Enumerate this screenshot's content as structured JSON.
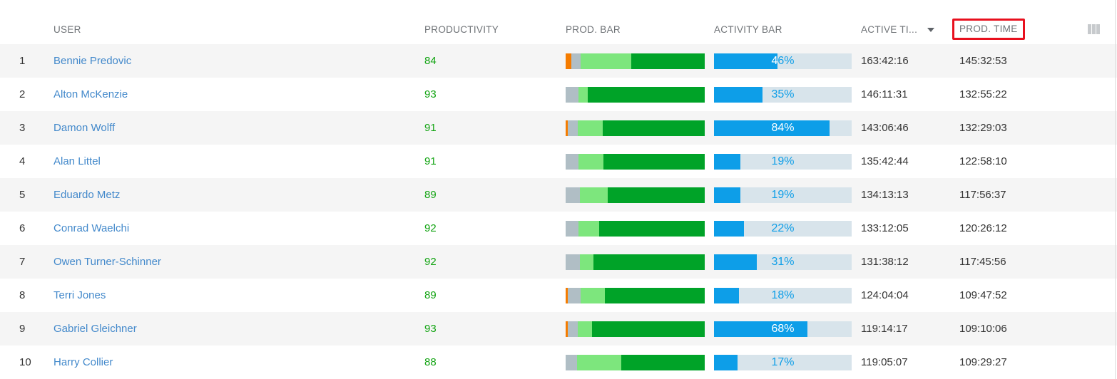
{
  "table": {
    "columns": {
      "user": "USER",
      "productivity": "PRODUCTIVITY",
      "prod_bar": "PROD. BAR",
      "activity_bar": "ACTIVITY BAR",
      "active_time": "ACTIVE TI...",
      "prod_time": "PROD. TIME"
    },
    "sort": {
      "column": "active_time",
      "direction": "desc"
    },
    "annotation": {
      "type": "red-highlight-box",
      "around_column": "prod_time",
      "color": "#e8101e"
    }
  },
  "colors": {
    "link_blue": "#4389cb",
    "productivity_green": "#12a412",
    "activity_fill_blue": "#0d9ee8",
    "activity_track": "#d8e4eb",
    "zebra_gray": "#f5f5f5",
    "bar_orange": "#f57c00",
    "bar_gray": "#b0bec5",
    "bar_light_green": "#7de67d",
    "bar_dark_green": "#00a328"
  },
  "bar_colors": {
    "orange": "#f57c00",
    "gray": "#b0bec5",
    "light_green": "#7de67d",
    "dark_green": "#00a328"
  },
  "rows": [
    {
      "rank": "1",
      "user": "Bennie Predovic",
      "productivity": "84",
      "prod_bar": [
        {
          "color": "orange",
          "pct": 4
        },
        {
          "color": "gray",
          "pct": 7
        },
        {
          "color": "light_green",
          "pct": 36
        },
        {
          "color": "dark_green",
          "pct": 53
        }
      ],
      "activity_pct": 46,
      "activity_label": "46%",
      "active_time": "163:42:16",
      "prod_time": "145:32:53"
    },
    {
      "rank": "2",
      "user": "Alton McKenzie",
      "productivity": "93",
      "prod_bar": [
        {
          "color": "gray",
          "pct": 9
        },
        {
          "color": "light_green",
          "pct": 7
        },
        {
          "color": "dark_green",
          "pct": 84
        }
      ],
      "activity_pct": 35,
      "activity_label": "35%",
      "active_time": "146:11:31",
      "prod_time": "132:55:22"
    },
    {
      "rank": "3",
      "user": "Damon Wolff",
      "productivity": "91",
      "prod_bar": [
        {
          "color": "orange",
          "pct": 1.5
        },
        {
          "color": "gray",
          "pct": 7
        },
        {
          "color": "light_green",
          "pct": 18
        },
        {
          "color": "dark_green",
          "pct": 73.5
        }
      ],
      "activity_pct": 84,
      "activity_label": "84%",
      "active_time": "143:06:46",
      "prod_time": "132:29:03"
    },
    {
      "rank": "4",
      "user": "Alan Littel",
      "productivity": "91",
      "prod_bar": [
        {
          "color": "gray",
          "pct": 9
        },
        {
          "color": "light_green",
          "pct": 18
        },
        {
          "color": "dark_green",
          "pct": 73
        }
      ],
      "activity_pct": 19,
      "activity_label": "19%",
      "active_time": "135:42:44",
      "prod_time": "122:58:10"
    },
    {
      "rank": "5",
      "user": "Eduardo Metz",
      "productivity": "89",
      "prod_bar": [
        {
          "color": "gray",
          "pct": 10
        },
        {
          "color": "light_green",
          "pct": 20
        },
        {
          "color": "dark_green",
          "pct": 70
        }
      ],
      "activity_pct": 19,
      "activity_label": "19%",
      "active_time": "134:13:13",
      "prod_time": "117:56:37"
    },
    {
      "rank": "6",
      "user": "Conrad Waelchi",
      "productivity": "92",
      "prod_bar": [
        {
          "color": "gray",
          "pct": 9
        },
        {
          "color": "light_green",
          "pct": 15
        },
        {
          "color": "dark_green",
          "pct": 76
        }
      ],
      "activity_pct": 22,
      "activity_label": "22%",
      "active_time": "133:12:05",
      "prod_time": "120:26:12"
    },
    {
      "rank": "7",
      "user": "Owen Turner-Schinner",
      "productivity": "92",
      "prod_bar": [
        {
          "color": "gray",
          "pct": 10
        },
        {
          "color": "light_green",
          "pct": 10
        },
        {
          "color": "dark_green",
          "pct": 80
        }
      ],
      "activity_pct": 31,
      "activity_label": "31%",
      "active_time": "131:38:12",
      "prod_time": "117:45:56"
    },
    {
      "rank": "8",
      "user": "Terri Jones",
      "productivity": "89",
      "prod_bar": [
        {
          "color": "orange",
          "pct": 1.5
        },
        {
          "color": "gray",
          "pct": 9.5
        },
        {
          "color": "light_green",
          "pct": 17
        },
        {
          "color": "dark_green",
          "pct": 72
        }
      ],
      "activity_pct": 18,
      "activity_label": "18%",
      "active_time": "124:04:04",
      "prod_time": "109:47:52"
    },
    {
      "rank": "9",
      "user": "Gabriel Gleichner",
      "productivity": "93",
      "prod_bar": [
        {
          "color": "orange",
          "pct": 1.5
        },
        {
          "color": "gray",
          "pct": 7
        },
        {
          "color": "light_green",
          "pct": 10.5
        },
        {
          "color": "dark_green",
          "pct": 81
        }
      ],
      "activity_pct": 68,
      "activity_label": "68%",
      "active_time": "119:14:17",
      "prod_time": "109:10:06"
    },
    {
      "rank": "10",
      "user": "Harry Collier",
      "productivity": "88",
      "prod_bar": [
        {
          "color": "gray",
          "pct": 8
        },
        {
          "color": "light_green",
          "pct": 32
        },
        {
          "color": "dark_green",
          "pct": 60
        }
      ],
      "activity_pct": 17,
      "activity_label": "17%",
      "active_time": "119:05:07",
      "prod_time": "109:29:27"
    }
  ]
}
